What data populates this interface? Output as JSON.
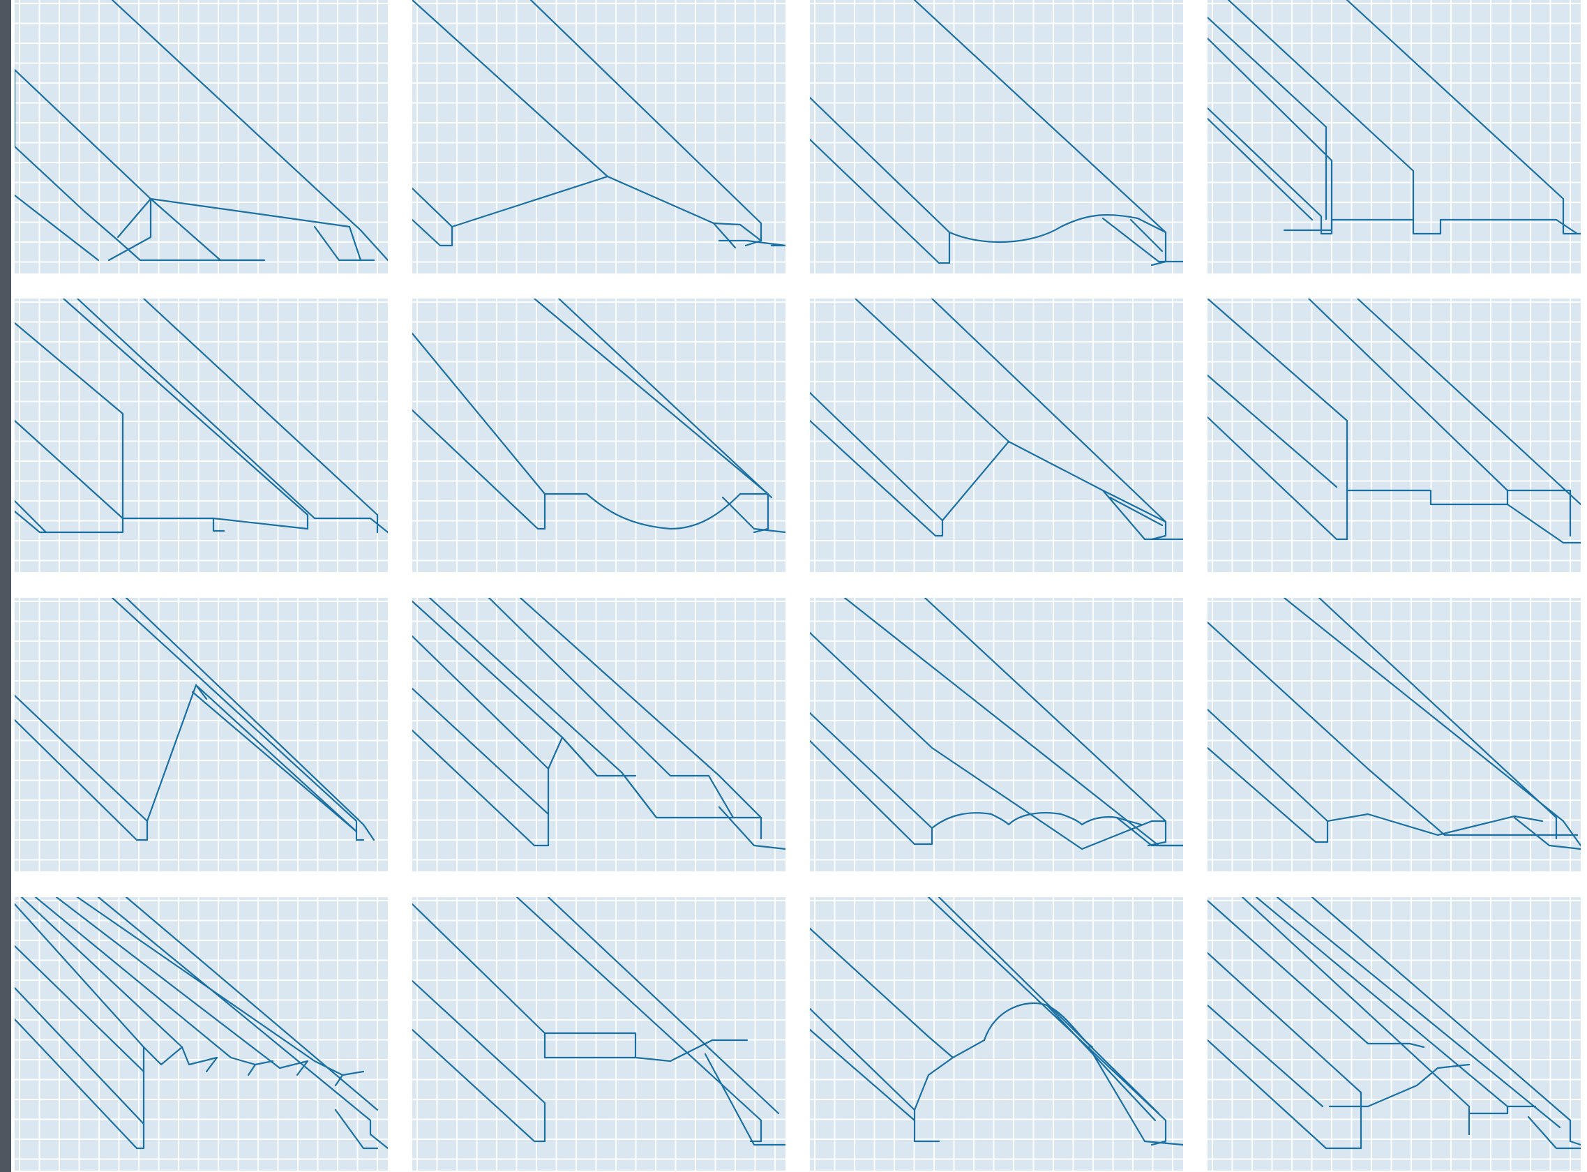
{
  "page": {
    "colors": {
      "tile_background": "#dae7f0",
      "grid_line": "#ffffff",
      "profile_stroke": "#1a6fa3",
      "left_bar": "#4e575f",
      "gutter": "#ffffff"
    },
    "tiles": [
      {
        "id": "profile-1",
        "icon": "siding-profile-wide-bevel-icon"
      },
      {
        "id": "profile-2",
        "icon": "siding-profile-shiplap-v-icon"
      },
      {
        "id": "profile-3",
        "icon": "siding-profile-cove-icon"
      },
      {
        "id": "profile-4",
        "icon": "siding-profile-channel-groove-icon"
      },
      {
        "id": "profile-5",
        "icon": "siding-profile-multi-channel-icon"
      },
      {
        "id": "profile-6",
        "icon": "siding-profile-rounded-cove-icon"
      },
      {
        "id": "profile-7",
        "icon": "siding-profile-bevel-lap-icon"
      },
      {
        "id": "profile-8",
        "icon": "siding-profile-stepped-channel-icon"
      },
      {
        "id": "profile-9",
        "icon": "siding-profile-board-batten-icon"
      },
      {
        "id": "profile-10",
        "icon": "siding-profile-trapezoid-rib-icon"
      },
      {
        "id": "profile-11",
        "icon": "siding-profile-double-scallop-icon"
      },
      {
        "id": "profile-12",
        "icon": "siding-profile-double-bevel-icon"
      },
      {
        "id": "profile-13",
        "icon": "siding-profile-fine-rib-icon"
      },
      {
        "id": "profile-14",
        "icon": "siding-profile-flat-channel-icon"
      },
      {
        "id": "profile-15",
        "icon": "siding-profile-bullnose-icon"
      },
      {
        "id": "profile-16",
        "icon": "siding-profile-multi-step-icon"
      }
    ]
  }
}
